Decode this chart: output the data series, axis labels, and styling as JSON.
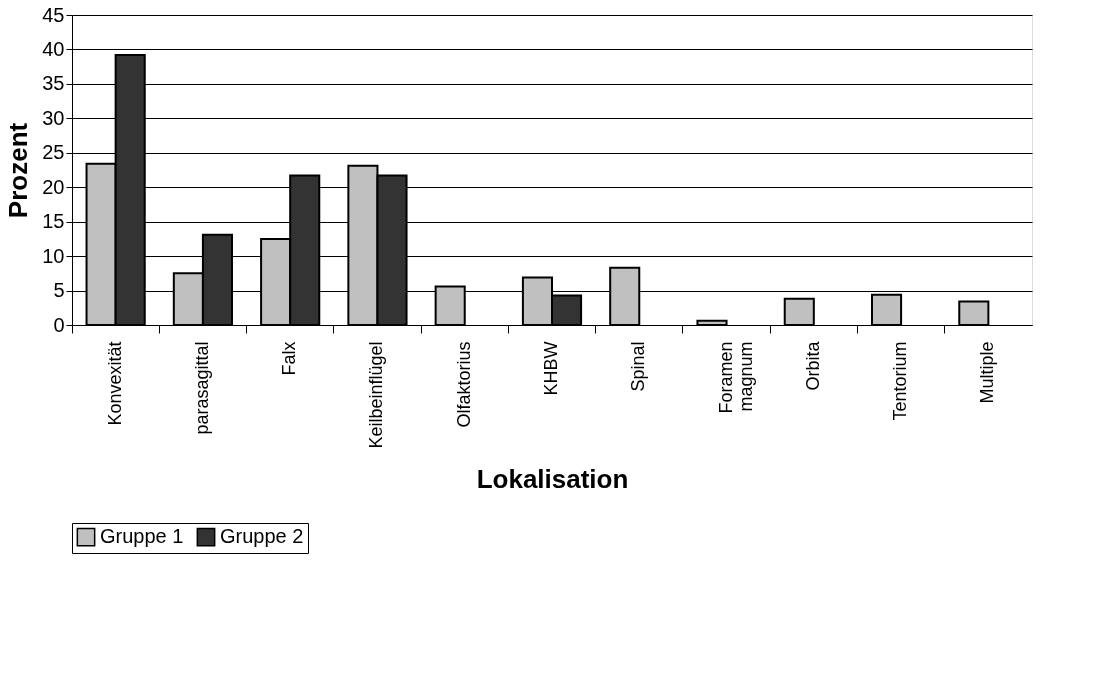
{
  "chart_data": {
    "type": "bar",
    "xlabel": "Lokalisation",
    "ylabel": "Prozent",
    "categories": [
      "Konvexität",
      "parasagittal",
      "Falx",
      "Keilbeinflügel",
      "Olfaktorius",
      "KHBW",
      "Spinal",
      "Foramen\nmagnum",
      "Orbita",
      "Tentorium",
      "Multiple"
    ],
    "series": [
      {
        "name": "Gruppe 1",
        "color": "#c0c0c0",
        "values": [
          23.4,
          7.5,
          12.5,
          23.1,
          5.6,
          6.9,
          8.3,
          0.6,
          3.8,
          4.4,
          3.4
        ]
      },
      {
        "name": "Gruppe 2",
        "color": "#333333",
        "values": [
          39.2,
          13.1,
          21.7,
          21.7,
          null,
          4.3,
          null,
          null,
          null,
          null,
          null
        ]
      }
    ],
    "ylim": [
      0,
      45
    ],
    "yticks": [
      0,
      5,
      10,
      15,
      20,
      25,
      30,
      35,
      40,
      45
    ],
    "grid": "y",
    "legend": "bottom"
  }
}
